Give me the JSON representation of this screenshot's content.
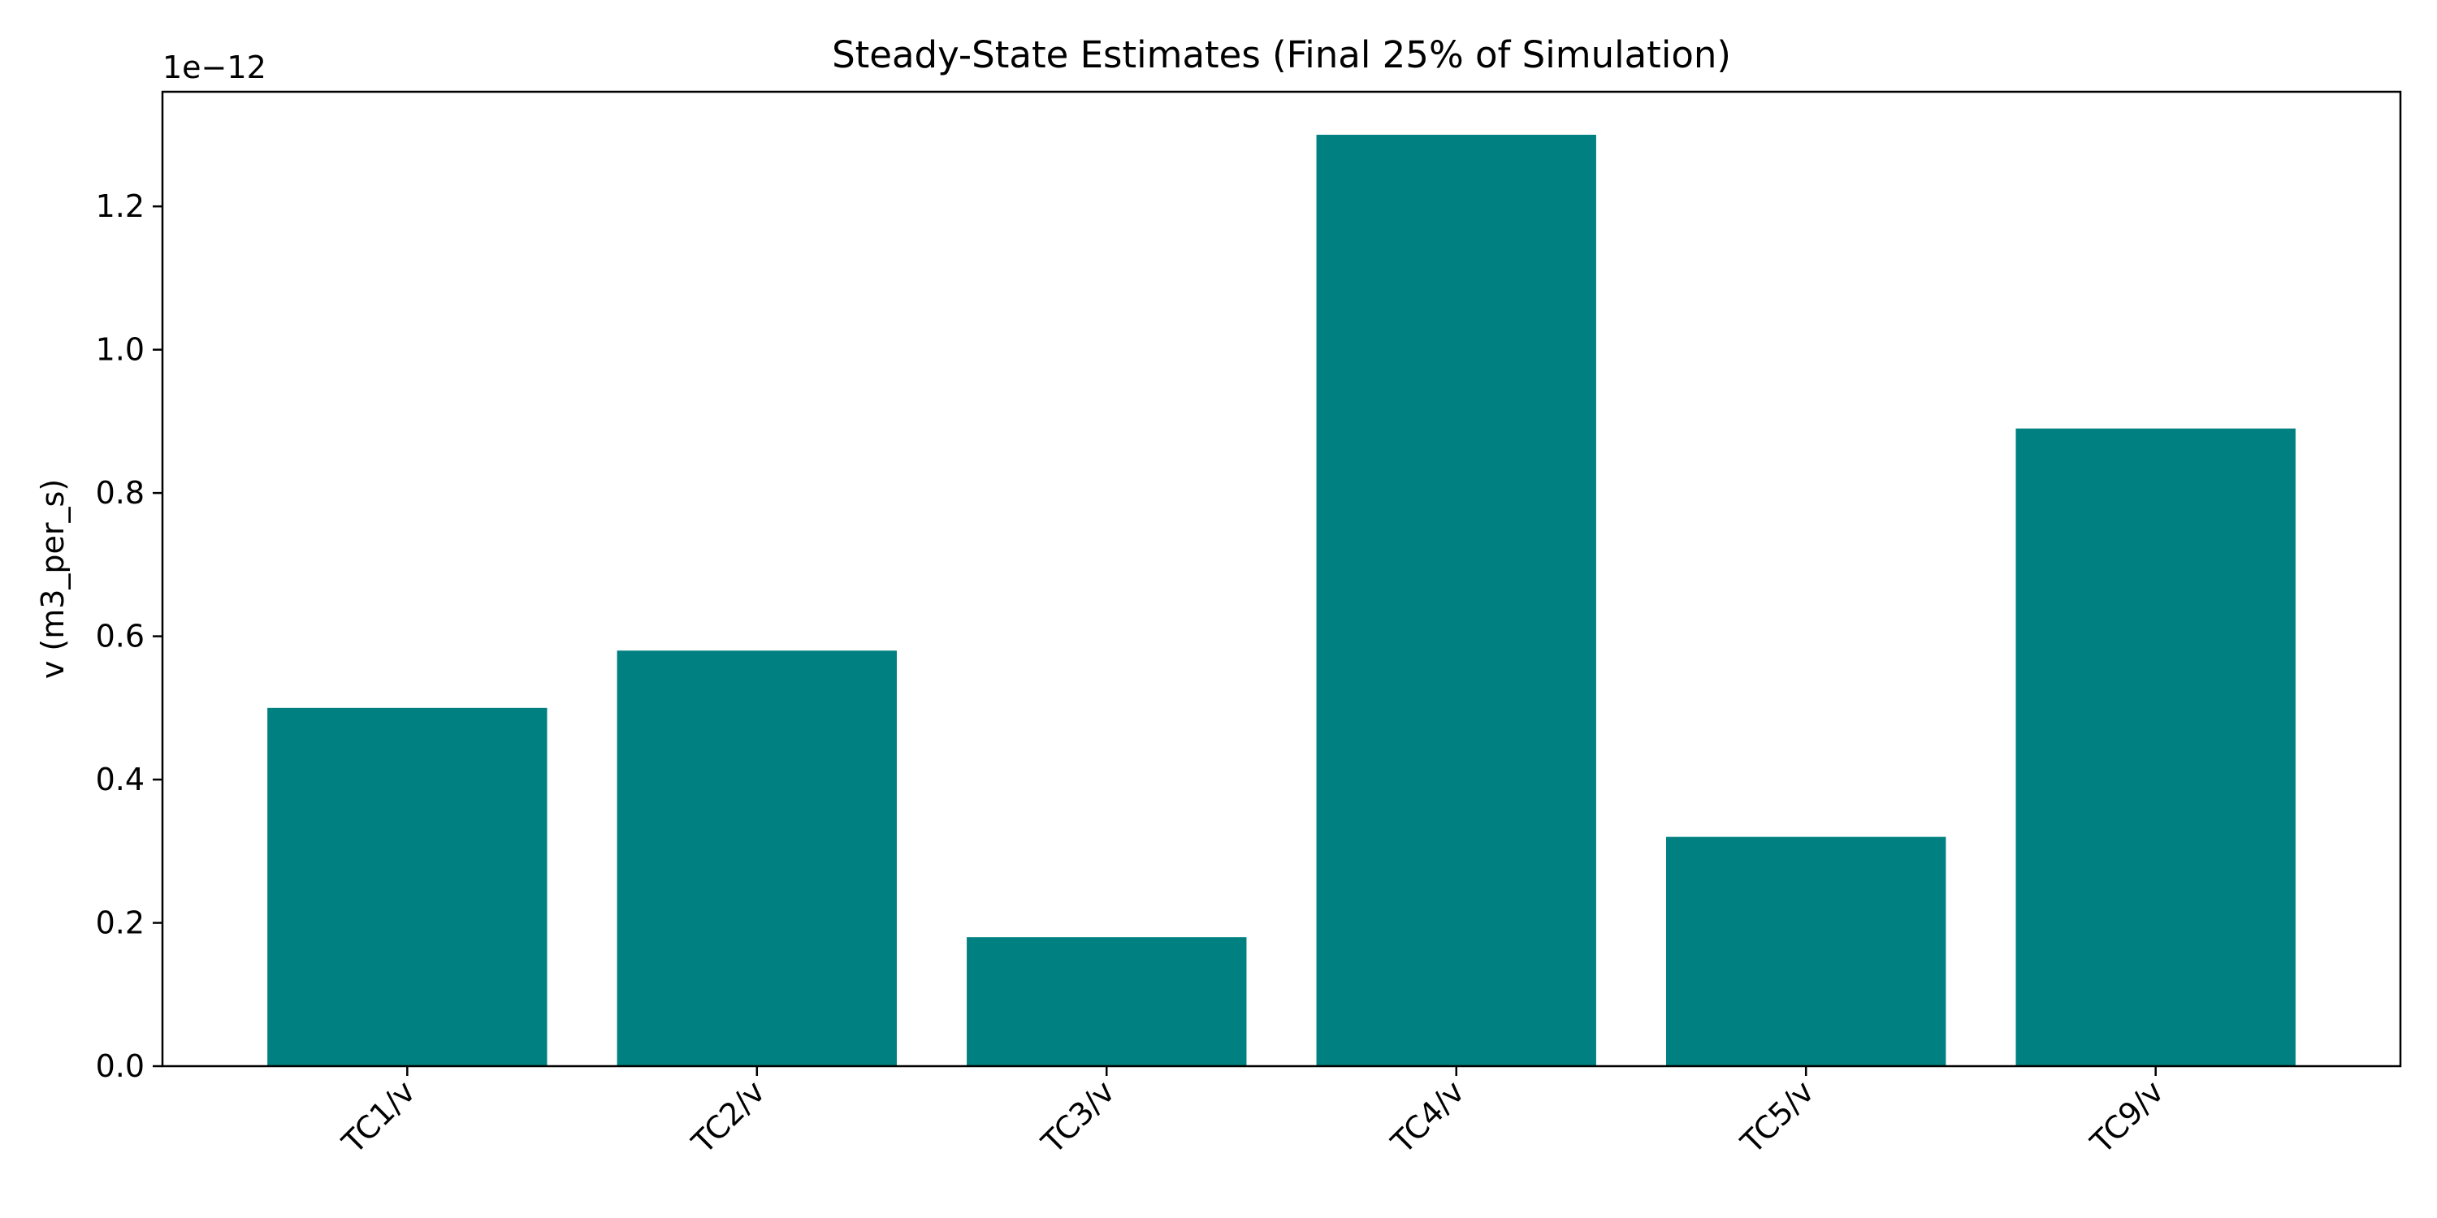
{
  "chart_data": {
    "type": "bar",
    "title": "Steady-State Estimates (Final 25% of Simulation)",
    "xlabel": "",
    "ylabel": "v (m3_per_s)",
    "y_offset_label": "1e−12",
    "categories": [
      "TC1/v",
      "TC2/v",
      "TC3/v",
      "TC4/v",
      "TC5/v",
      "TC9/v"
    ],
    "values": [
      0.5,
      0.58,
      0.18,
      1.3,
      0.32,
      0.89
    ],
    "value_multiplier": 1e-12,
    "ylim": [
      0,
      1.36
    ],
    "yticks": [
      0.0,
      0.2,
      0.4,
      0.6,
      0.8,
      1.0,
      1.2
    ],
    "ytick_labels": [
      "0.0",
      "0.2",
      "0.4",
      "0.6",
      "0.8",
      "1.0",
      "1.2"
    ],
    "grid": false,
    "legend": "none",
    "bar_color": "#008080"
  }
}
